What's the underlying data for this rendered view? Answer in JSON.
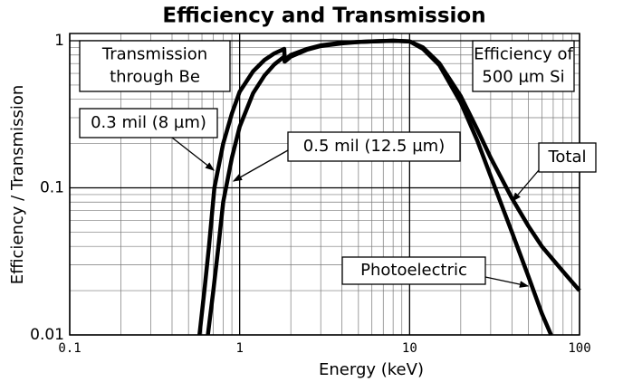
{
  "chart_data": {
    "type": "line",
    "title": "Efficiency and Transmission",
    "x_label": "Energy (keV)",
    "y_label": "Efficiency / Transmission",
    "log_x": true,
    "log_y": true,
    "grid": true,
    "minor_grid": true,
    "xlim": [
      0.1,
      100
    ],
    "ylim": [
      0.01,
      1.12
    ],
    "xticks": [
      0.1,
      1,
      10,
      100
    ],
    "yticks": [
      0.01,
      0.1,
      1
    ],
    "series": [
      {
        "color": "#000000",
        "x": [
          0.58,
          0.62,
          0.66,
          0.71,
          0.8,
          0.9,
          1.0,
          1.2,
          1.4,
          1.6,
          1.83,
          1.84,
          2,
          2.5,
          3,
          4,
          5,
          6,
          8,
          10
        ],
        "values": [
          0.01,
          0.02,
          0.04,
          0.1,
          0.2,
          0.32,
          0.45,
          0.62,
          0.74,
          0.82,
          0.88,
          0.74,
          0.8,
          0.88,
          0.93,
          0.97,
          0.98,
          0.99,
          1.0,
          0.99
        ]
      },
      {
        "color": "#000000",
        "x": [
          0.65,
          0.7,
          0.75,
          0.8,
          0.9,
          1.0,
          1.2,
          1.4,
          1.6,
          1.83,
          1.84,
          2,
          2.5,
          3,
          4,
          5,
          6,
          8,
          10
        ],
        "values": [
          0.01,
          0.02,
          0.04,
          0.08,
          0.16,
          0.26,
          0.44,
          0.58,
          0.69,
          0.78,
          0.72,
          0.78,
          0.87,
          0.92,
          0.96,
          0.98,
          0.99,
          1.0,
          0.99
        ]
      },
      {
        "color": "#000000",
        "x": [
          10,
          12,
          15,
          20,
          25,
          30,
          40,
          50,
          60,
          80,
          100
        ],
        "values": [
          0.99,
          0.9,
          0.7,
          0.42,
          0.25,
          0.16,
          0.085,
          0.055,
          0.04,
          0.027,
          0.02
        ]
      },
      {
        "color": "#000000",
        "x": [
          10,
          12,
          15,
          20,
          25,
          30,
          40,
          50,
          60,
          68
        ],
        "values": [
          0.99,
          0.88,
          0.68,
          0.38,
          0.21,
          0.12,
          0.05,
          0.025,
          0.014,
          0.01
        ]
      }
    ],
    "annotations": [
      {
        "lines": [
          "Transmission",
          "through Be"
        ]
      },
      {
        "lines": [
          "0.3 mil (8 µm)"
        ]
      },
      {
        "lines": [
          "0.5 mil (12.5 µm)"
        ]
      },
      {
        "lines": [
          "Efficiency of",
          "500 µm Si"
        ]
      },
      {
        "lines": [
          "Total"
        ]
      },
      {
        "lines": [
          "Photoelectric"
        ]
      }
    ]
  }
}
